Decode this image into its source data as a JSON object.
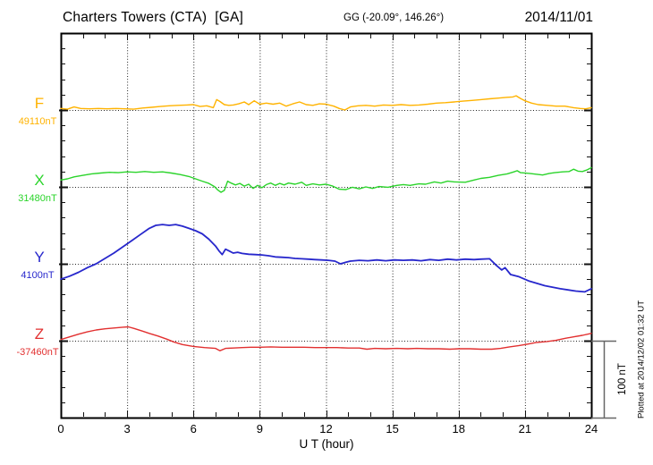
{
  "header": {
    "station_title": "Charters Towers (CTA)  [GA]",
    "geo_coords": "GG (-20.09°, 146.26°)",
    "date": "2014/11/01"
  },
  "footer": {
    "xaxis_label": "U T (hour)"
  },
  "annotations": {
    "scale_bar_label": "100 nT",
    "plotted_at": "Plotted at 2014/12/02 01:32 UT"
  },
  "colors": {
    "F": "#FFB300",
    "X": "#2BD42B",
    "Y": "#2727CC",
    "Z": "#E23030",
    "frame": "#000000",
    "grid": "#222222",
    "scalebar": "#666666",
    "background": "#FFFFFF"
  },
  "chart_data": {
    "type": "line",
    "title": "Charters Towers (CTA) magnetogram 2014/11/01",
    "xlabel": "U T (hour)",
    "x_range": [
      0,
      24
    ],
    "x_ticks": [
      "0",
      "3",
      "6",
      "9",
      "12",
      "15",
      "18",
      "21",
      "24"
    ],
    "x_tick_hours": [
      0,
      3,
      6,
      9,
      12,
      15,
      18,
      21,
      24
    ],
    "minor_tick_hours": 1,
    "grid_hours": [
      3,
      6,
      9,
      12,
      15,
      18,
      21
    ],
    "y_minor_division_nT": 20,
    "scale_bar_nT": 100,
    "series": [
      {
        "name": "F",
        "baseline_value_label": "49110nT",
        "color": "#FFB300",
        "units": "nT offset from 49110 nT",
        "points": [
          [
            0,
            2
          ],
          [
            0.3,
            1
          ],
          [
            0.6,
            4
          ],
          [
            0.9,
            2
          ],
          [
            1.3,
            1.5
          ],
          [
            1.7,
            2
          ],
          [
            2.1,
            1.5
          ],
          [
            2.5,
            2
          ],
          [
            2.9,
            1.5
          ],
          [
            3.3,
            1
          ],
          [
            3.7,
            2.5
          ],
          [
            4.1,
            3.5
          ],
          [
            4.5,
            4.5
          ],
          [
            4.9,
            5.5
          ],
          [
            5.3,
            6
          ],
          [
            5.7,
            6.5
          ],
          [
            6,
            7
          ],
          [
            6.3,
            4.5
          ],
          [
            6.6,
            5.5
          ],
          [
            6.9,
            3
          ],
          [
            7.05,
            13.5
          ],
          [
            7.2,
            11
          ],
          [
            7.4,
            7
          ],
          [
            7.6,
            6
          ],
          [
            7.8,
            6.5
          ],
          [
            8.05,
            8
          ],
          [
            8.3,
            10.5
          ],
          [
            8.5,
            7
          ],
          [
            8.75,
            12
          ],
          [
            9,
            7.5
          ],
          [
            9.3,
            9
          ],
          [
            9.6,
            7.5
          ],
          [
            9.9,
            9
          ],
          [
            10.2,
            5
          ],
          [
            10.5,
            8
          ],
          [
            10.8,
            10.5
          ],
          [
            11.1,
            7
          ],
          [
            11.4,
            6
          ],
          [
            11.7,
            8
          ],
          [
            12,
            7.5
          ],
          [
            12.35,
            5
          ],
          [
            12.6,
            2
          ],
          [
            12.85,
            0
          ],
          [
            13.1,
            4
          ],
          [
            13.45,
            5.5
          ],
          [
            13.8,
            6
          ],
          [
            14.2,
            5
          ],
          [
            14.6,
            6.5
          ],
          [
            15,
            6
          ],
          [
            15.4,
            7
          ],
          [
            15.8,
            6
          ],
          [
            16.2,
            6.5
          ],
          [
            16.6,
            7.5
          ],
          [
            17,
            9
          ],
          [
            17.4,
            9.5
          ],
          [
            17.8,
            10.5
          ],
          [
            18.2,
            11.5
          ],
          [
            18.6,
            12.5
          ],
          [
            19,
            13.5
          ],
          [
            19.4,
            14.5
          ],
          [
            19.8,
            15.5
          ],
          [
            20.2,
            16.5
          ],
          [
            20.45,
            17
          ],
          [
            20.6,
            18.5
          ],
          [
            20.8,
            15
          ],
          [
            21,
            12
          ],
          [
            21.3,
            9
          ],
          [
            21.6,
            7
          ],
          [
            22,
            6
          ],
          [
            22.4,
            5
          ],
          [
            22.8,
            5
          ],
          [
            23.2,
            3
          ],
          [
            23.5,
            2
          ],
          [
            23.75,
            1.5
          ],
          [
            24,
            3
          ]
        ]
      },
      {
        "name": "X",
        "baseline_value_label": "31480nT",
        "color": "#2BD42B",
        "units": "nT offset from 31480 nT",
        "points": [
          [
            0,
            9
          ],
          [
            0.3,
            10.5
          ],
          [
            0.6,
            13
          ],
          [
            1,
            15
          ],
          [
            1.4,
            17
          ],
          [
            1.8,
            18
          ],
          [
            2.2,
            19
          ],
          [
            2.6,
            18.5
          ],
          [
            3,
            19.5
          ],
          [
            3.4,
            19
          ],
          [
            3.8,
            20
          ],
          [
            4.2,
            19
          ],
          [
            4.6,
            19.5
          ],
          [
            5,
            18
          ],
          [
            5.4,
            16
          ],
          [
            5.8,
            13.5
          ],
          [
            6.1,
            10.5
          ],
          [
            6.4,
            7.5
          ],
          [
            6.7,
            4.5
          ],
          [
            6.95,
            0.5
          ],
          [
            7.1,
            -4
          ],
          [
            7.25,
            -7
          ],
          [
            7.4,
            -4.5
          ],
          [
            7.55,
            7.5
          ],
          [
            7.7,
            5
          ],
          [
            7.9,
            2.5
          ],
          [
            8.1,
            4.5
          ],
          [
            8.3,
            1
          ],
          [
            8.5,
            3.5
          ],
          [
            8.7,
            -2
          ],
          [
            8.9,
            2
          ],
          [
            9.1,
            -1
          ],
          [
            9.3,
            3
          ],
          [
            9.5,
            5
          ],
          [
            9.7,
            2
          ],
          [
            9.9,
            4.5
          ],
          [
            10.1,
            2.5
          ],
          [
            10.3,
            5
          ],
          [
            10.6,
            3.5
          ],
          [
            10.9,
            6
          ],
          [
            11.1,
            2
          ],
          [
            11.4,
            4
          ],
          [
            11.7,
            2.5
          ],
          [
            12,
            3.5
          ],
          [
            12.3,
            1
          ],
          [
            12.6,
            -3
          ],
          [
            12.9,
            -3.5
          ],
          [
            13.2,
            -0.5
          ],
          [
            13.5,
            -2.5
          ],
          [
            13.8,
            0
          ],
          [
            14.1,
            -2
          ],
          [
            14.4,
            0.5
          ],
          [
            14.8,
            -0.5
          ],
          [
            15.2,
            2
          ],
          [
            15.5,
            3
          ],
          [
            15.8,
            2
          ],
          [
            16.2,
            4
          ],
          [
            16.5,
            3.5
          ],
          [
            16.9,
            6.5
          ],
          [
            17.2,
            5
          ],
          [
            17.5,
            7.5
          ],
          [
            17.8,
            6.5
          ],
          [
            18.3,
            6
          ],
          [
            18.7,
            9
          ],
          [
            19,
            11
          ],
          [
            19.4,
            12.5
          ],
          [
            19.8,
            15
          ],
          [
            20.2,
            17
          ],
          [
            20.5,
            19.5
          ],
          [
            20.65,
            21
          ],
          [
            20.8,
            18.5
          ],
          [
            21.2,
            17.5
          ],
          [
            21.5,
            16.5
          ],
          [
            21.8,
            15.5
          ],
          [
            22.1,
            17.5
          ],
          [
            22.35,
            18.5
          ],
          [
            22.7,
            19.5
          ],
          [
            23,
            20
          ],
          [
            23.2,
            23
          ],
          [
            23.4,
            20.5
          ],
          [
            23.6,
            20
          ],
          [
            23.8,
            22
          ],
          [
            24,
            25
          ]
        ]
      },
      {
        "name": "Y",
        "baseline_value_label": "4100nT",
        "color": "#2727CC",
        "units": "nT offset from 4100 nT",
        "points": [
          [
            0,
            -20
          ],
          [
            0.4,
            -16
          ],
          [
            0.8,
            -11
          ],
          [
            1.2,
            -5
          ],
          [
            1.6,
            0
          ],
          [
            2,
            7
          ],
          [
            2.4,
            14
          ],
          [
            2.8,
            22
          ],
          [
            3.2,
            30
          ],
          [
            3.6,
            38
          ],
          [
            4,
            46
          ],
          [
            4.3,
            50
          ],
          [
            4.6,
            51
          ],
          [
            4.9,
            50
          ],
          [
            5.2,
            51
          ],
          [
            5.5,
            49
          ],
          [
            5.8,
            46
          ],
          [
            6.1,
            43
          ],
          [
            6.4,
            39
          ],
          [
            6.7,
            32
          ],
          [
            7,
            23
          ],
          [
            7.15,
            17
          ],
          [
            7.3,
            12
          ],
          [
            7.45,
            19
          ],
          [
            7.6,
            17
          ],
          [
            7.8,
            14
          ],
          [
            8,
            15
          ],
          [
            8.2,
            13.5
          ],
          [
            8.5,
            12.5
          ],
          [
            8.8,
            12
          ],
          [
            9.1,
            11.5
          ],
          [
            9.4,
            10.5
          ],
          [
            9.7,
            9
          ],
          [
            10,
            8.5
          ],
          [
            10.3,
            8
          ],
          [
            10.6,
            7
          ],
          [
            10.9,
            6.5
          ],
          [
            11.2,
            6
          ],
          [
            11.5,
            5.5
          ],
          [
            11.8,
            5
          ],
          [
            12.1,
            4.5
          ],
          [
            12.4,
            3.5
          ],
          [
            12.65,
            0
          ],
          [
            12.9,
            2
          ],
          [
            13.1,
            3.5
          ],
          [
            13.5,
            4.5
          ],
          [
            13.9,
            4
          ],
          [
            14.3,
            5
          ],
          [
            14.7,
            4
          ],
          [
            15.1,
            5
          ],
          [
            15.5,
            4.5
          ],
          [
            15.9,
            5
          ],
          [
            16.3,
            4
          ],
          [
            16.7,
            5.5
          ],
          [
            17.1,
            4.5
          ],
          [
            17.5,
            6
          ],
          [
            17.9,
            5
          ],
          [
            18.3,
            6
          ],
          [
            18.7,
            5.5
          ],
          [
            19,
            6
          ],
          [
            19.4,
            6.5
          ],
          [
            19.7,
            -2
          ],
          [
            19.95,
            -8
          ],
          [
            20.1,
            -5
          ],
          [
            20.35,
            -14
          ],
          [
            20.7,
            -16.5
          ],
          [
            21.2,
            -22.5
          ],
          [
            21.9,
            -28.5
          ],
          [
            22.6,
            -32.5
          ],
          [
            23.3,
            -35.5
          ],
          [
            23.7,
            -36.5
          ],
          [
            24,
            -32.5
          ]
        ]
      },
      {
        "name": "Z",
        "baseline_value_label": "-37460nT",
        "color": "#E23030",
        "units": "nT offset from -37460 nT",
        "points": [
          [
            0,
            1.5
          ],
          [
            0.4,
            5
          ],
          [
            0.8,
            8.5
          ],
          [
            1.2,
            11.5
          ],
          [
            1.6,
            14
          ],
          [
            2,
            15.5
          ],
          [
            2.4,
            16.5
          ],
          [
            2.8,
            17.5
          ],
          [
            3.05,
            18
          ],
          [
            3.3,
            16
          ],
          [
            3.7,
            12.5
          ],
          [
            4,
            9.5
          ],
          [
            4.4,
            6
          ],
          [
            4.8,
            2
          ],
          [
            5.1,
            -1.5
          ],
          [
            5.5,
            -5
          ],
          [
            6,
            -7.5
          ],
          [
            6.5,
            -9
          ],
          [
            7,
            -10
          ],
          [
            7.2,
            -13
          ],
          [
            7.45,
            -10
          ],
          [
            7.8,
            -9.5
          ],
          [
            8.2,
            -9
          ],
          [
            8.6,
            -8.5
          ],
          [
            9,
            -8.5
          ],
          [
            9.5,
            -8
          ],
          [
            10,
            -8.5
          ],
          [
            10.5,
            -8.5
          ],
          [
            11,
            -8.5
          ],
          [
            11.5,
            -9
          ],
          [
            12,
            -9
          ],
          [
            12.5,
            -9
          ],
          [
            13,
            -9.5
          ],
          [
            13.5,
            -9.5
          ],
          [
            13.85,
            -11
          ],
          [
            14.2,
            -10
          ],
          [
            14.7,
            -10.5
          ],
          [
            15.2,
            -10
          ],
          [
            15.7,
            -10.5
          ],
          [
            16.1,
            -10
          ],
          [
            16.6,
            -10.5
          ],
          [
            17.1,
            -10.5
          ],
          [
            17.6,
            -11
          ],
          [
            18,
            -10.5
          ],
          [
            18.5,
            -10.5
          ],
          [
            19,
            -11
          ],
          [
            19.5,
            -11
          ],
          [
            19.9,
            -10
          ],
          [
            20.3,
            -8
          ],
          [
            20.7,
            -6.5
          ],
          [
            21.1,
            -4.5
          ],
          [
            21.5,
            -2.5
          ],
          [
            22,
            -1
          ],
          [
            22.4,
            0.5
          ],
          [
            22.8,
            3
          ],
          [
            23.2,
            5
          ],
          [
            23.6,
            7
          ],
          [
            24,
            9.5
          ]
        ]
      }
    ]
  }
}
